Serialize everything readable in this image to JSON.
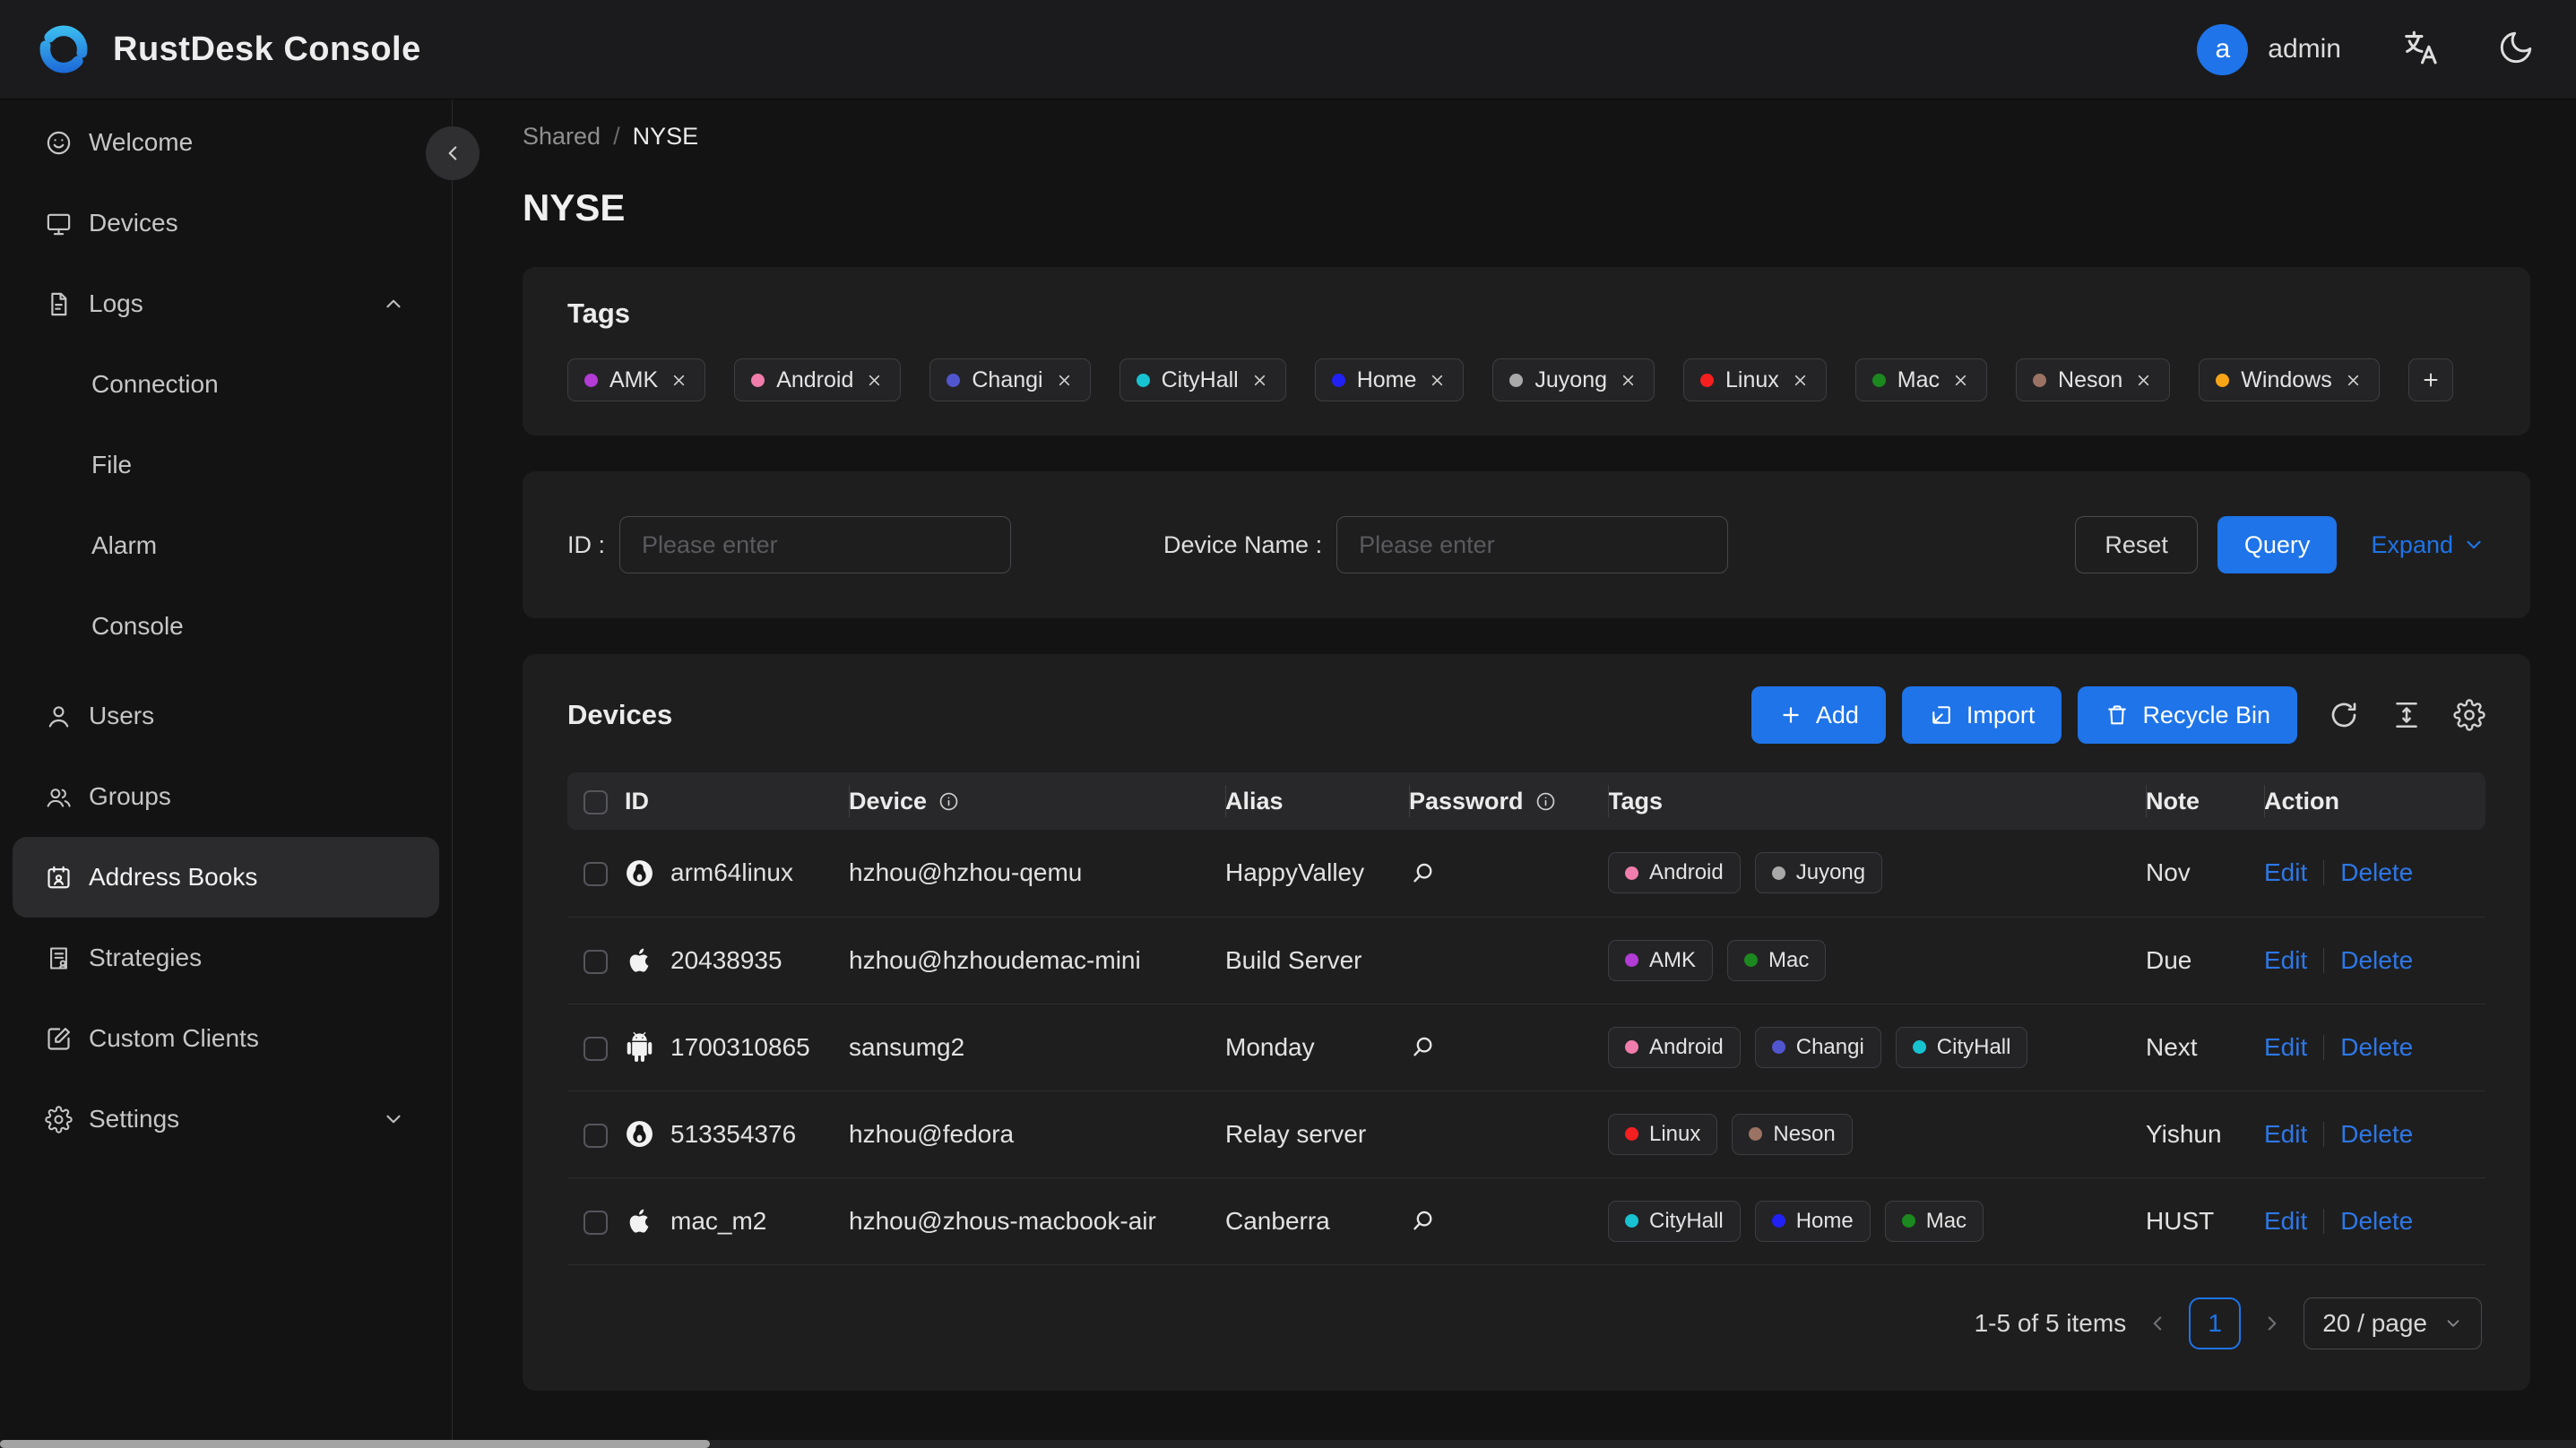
{
  "header": {
    "app_title": "RustDesk Console",
    "user_initial": "a",
    "user_name": "admin"
  },
  "sidebar": {
    "items": [
      {
        "id": "welcome",
        "label": "Welcome",
        "icon": "smiley-icon",
        "level": 1
      },
      {
        "id": "devices",
        "label": "Devices",
        "icon": "monitor-icon",
        "level": 1
      },
      {
        "id": "logs",
        "label": "Logs",
        "icon": "document-icon",
        "level": 1,
        "chevron": "up"
      },
      {
        "id": "connection",
        "label": "Connection",
        "level": 2
      },
      {
        "id": "file",
        "label": "File",
        "level": 2
      },
      {
        "id": "alarm",
        "label": "Alarm",
        "level": 2
      },
      {
        "id": "console",
        "label": "Console",
        "level": 2
      },
      {
        "id": "users",
        "label": "Users",
        "icon": "user-icon",
        "level": 1,
        "gap": true
      },
      {
        "id": "groups",
        "label": "Groups",
        "icon": "group-icon",
        "level": 1
      },
      {
        "id": "address-books",
        "label": "Address Books",
        "icon": "address-book-icon",
        "level": 1,
        "selected": true
      },
      {
        "id": "strategies",
        "label": "Strategies",
        "icon": "strategy-icon",
        "level": 1
      },
      {
        "id": "custom-clients",
        "label": "Custom Clients",
        "icon": "edit-square-icon",
        "level": 1
      },
      {
        "id": "settings",
        "label": "Settings",
        "icon": "gear-icon",
        "level": 1,
        "chevron": "down"
      }
    ]
  },
  "breadcrumb": {
    "parent": "Shared",
    "separator": "/",
    "current": "NYSE"
  },
  "page_title": "NYSE",
  "tags": {
    "title": "Tags",
    "items": [
      {
        "label": "AMK",
        "color": "#b33bd6"
      },
      {
        "label": "Android",
        "color": "#f07dab"
      },
      {
        "label": "Changi",
        "color": "#5156cf"
      },
      {
        "label": "CityHall",
        "color": "#17c2d1"
      },
      {
        "label": "Home",
        "color": "#2121f5"
      },
      {
        "label": "Juyong",
        "color": "#a9a9a9"
      },
      {
        "label": "Linux",
        "color": "#f51f1f"
      },
      {
        "label": "Mac",
        "color": "#1b891f"
      },
      {
        "label": "Neson",
        "color": "#9b7364"
      },
      {
        "label": "Windows",
        "color": "#f7a417"
      }
    ],
    "add_button": "+"
  },
  "filter": {
    "id_label": "ID :",
    "id_placeholder": "Please enter",
    "device_label": "Device Name :",
    "device_placeholder": "Please enter",
    "reset_label": "Reset",
    "query_label": "Query",
    "expand_label": "Expand"
  },
  "devices": {
    "title": "Devices",
    "add_label": "Add",
    "import_label": "Import",
    "recycle_label": "Recycle Bin",
    "toolbar_icons": [
      "refresh-icon",
      "row-height-icon",
      "gear-icon"
    ],
    "columns": [
      {
        "key": "id",
        "label": "ID"
      },
      {
        "key": "device",
        "label": "Device",
        "info": true
      },
      {
        "key": "alias",
        "label": "Alias"
      },
      {
        "key": "password",
        "label": "Password",
        "info": true
      },
      {
        "key": "tags",
        "label": "Tags"
      },
      {
        "key": "note",
        "label": "Note"
      },
      {
        "key": "action",
        "label": "Action"
      }
    ],
    "rows": [
      {
        "os": "linux",
        "id": "arm64linux",
        "device": "hzhou@hzhou-qemu",
        "alias": "HappyValley",
        "password_viewable": true,
        "tags": [
          "Android",
          "Juyong"
        ],
        "note": "Nov"
      },
      {
        "os": "apple",
        "id": "20438935",
        "device": "hzhou@hzhoudemac-mini",
        "alias": "Build Server",
        "password_viewable": false,
        "tags": [
          "AMK",
          "Mac"
        ],
        "note": "Due"
      },
      {
        "os": "android",
        "id": "1700310865",
        "device": "sansumg2",
        "alias": "Monday",
        "password_viewable": true,
        "tags": [
          "Android",
          "Changi",
          "CityHall"
        ],
        "note": "Next"
      },
      {
        "os": "linux",
        "id": "513354376",
        "device": "hzhou@fedora",
        "alias": "Relay server",
        "password_viewable": false,
        "tags": [
          "Linux",
          "Neson"
        ],
        "note": "Yishun"
      },
      {
        "os": "apple",
        "id": "mac_m2",
        "device": "hzhou@zhous-macbook-air",
        "alias": "Canberra",
        "password_viewable": true,
        "tags": [
          "CityHall",
          "Home",
          "Mac"
        ],
        "note": "HUST"
      }
    ],
    "edit_label": "Edit",
    "delete_label": "Delete"
  },
  "pagination": {
    "summary": "1-5 of 5 items",
    "page": "1",
    "page_size": "20 / page"
  },
  "colors": {
    "accent": "#1e74e8"
  }
}
